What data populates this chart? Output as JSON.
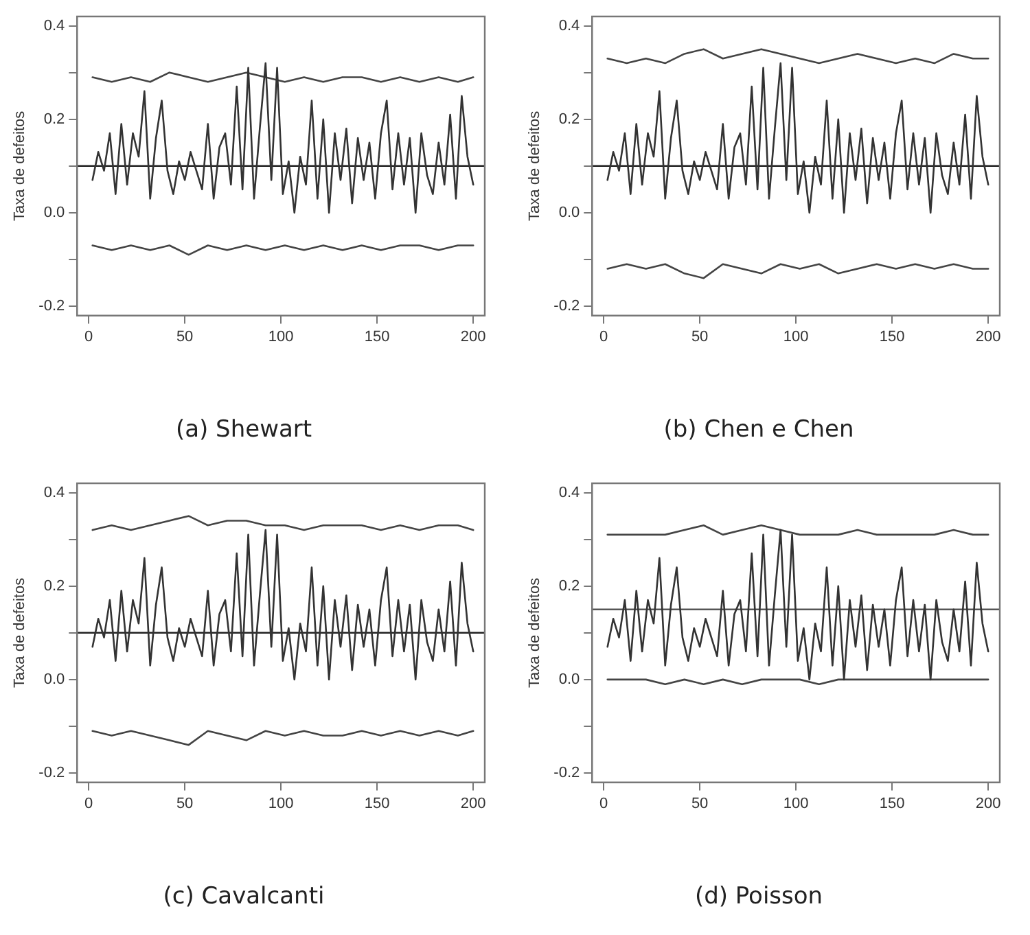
{
  "chart_data": [
    {
      "type": "line",
      "title": "(a) Shewart",
      "ylabel": "Taxa de defeitos",
      "marker": "none",
      "grid": false,
      "legend": false,
      "xlim": [
        -6,
        206
      ],
      "xticks": [
        0,
        50,
        100,
        150,
        200
      ],
      "ylim": [
        -0.22,
        0.42
      ],
      "yticks": [
        {
          "value": -0.2,
          "label": "-0.2"
        },
        {
          "value": -0.1,
          "label": null
        },
        {
          "value": 0,
          "label": "0.0"
        },
        {
          "value": 0.1,
          "label": null
        },
        {
          "value": 0.2,
          "label": "0.2"
        },
        {
          "value": 0.3,
          "label": null
        },
        {
          "value": 0.4,
          "label": "0.4"
        }
      ],
      "ref_lines": [
        {
          "axis": "y",
          "value": 0.1,
          "color": "#222222"
        }
      ],
      "series": [
        {
          "color": "#333333",
          "x": [
            2,
            5,
            8,
            11,
            14,
            17,
            20,
            23,
            26,
            29,
            32,
            35,
            38,
            41,
            44,
            47,
            50,
            53,
            56,
            59,
            62,
            65,
            68,
            71,
            74,
            77,
            80,
            83,
            86,
            89,
            92,
            95,
            98,
            101,
            104,
            107,
            110,
            113,
            116,
            119,
            122,
            125,
            128,
            131,
            134,
            137,
            140,
            143,
            146,
            149,
            152,
            155,
            158,
            161,
            164,
            167,
            170,
            173,
            176,
            179,
            182,
            185,
            188,
            191,
            194,
            197,
            200
          ],
          "values": [
            0.07,
            0.13,
            0.09,
            0.17,
            0.04,
            0.19,
            0.06,
            0.17,
            0.12,
            0.26,
            0.03,
            0.16,
            0.24,
            0.09,
            0.04,
            0.11,
            0.07,
            0.13,
            0.09,
            0.05,
            0.19,
            0.03,
            0.14,
            0.17,
            0.06,
            0.27,
            0.05,
            0.31,
            0.03,
            0.18,
            0.32,
            0.07,
            0.31,
            0.04,
            0.11,
            0.0,
            0.12,
            0.06,
            0.24,
            0.03,
            0.2,
            0.0,
            0.17,
            0.07,
            0.18,
            0.02,
            0.16,
            0.07,
            0.15,
            0.03,
            0.17,
            0.24,
            0.05,
            0.17,
            0.06,
            0.16,
            0.0,
            0.17,
            0.08,
            0.04,
            0.15,
            0.06,
            0.21,
            0.03,
            0.25,
            0.12,
            0.06
          ]
        },
        {
          "color": "#444444",
          "x": [
            2,
            12,
            22,
            32,
            42,
            52,
            62,
            72,
            82,
            92,
            102,
            112,
            122,
            132,
            142,
            152,
            162,
            172,
            182,
            192,
            200
          ],
          "values": [
            0.29,
            0.28,
            0.29,
            0.28,
            0.3,
            0.29,
            0.28,
            0.29,
            0.3,
            0.29,
            0.28,
            0.29,
            0.28,
            0.29,
            0.29,
            0.28,
            0.29,
            0.28,
            0.29,
            0.28,
            0.29
          ]
        },
        {
          "color": "#444444",
          "x": [
            2,
            12,
            22,
            32,
            42,
            52,
            62,
            72,
            82,
            92,
            102,
            112,
            122,
            132,
            142,
            152,
            162,
            172,
            182,
            192,
            200
          ],
          "values": [
            -0.07,
            -0.08,
            -0.07,
            -0.08,
            -0.07,
            -0.09,
            -0.07,
            -0.08,
            -0.07,
            -0.08,
            -0.07,
            -0.08,
            -0.07,
            -0.08,
            -0.07,
            -0.08,
            -0.07,
            -0.07,
            -0.08,
            -0.07,
            -0.07
          ]
        }
      ]
    },
    {
      "type": "line",
      "title": "(b) Chen e Chen",
      "ylabel": "Taxa de defeitos",
      "marker": "none",
      "grid": false,
      "legend": false,
      "xlim": [
        -6,
        206
      ],
      "xticks": [
        0,
        50,
        100,
        150,
        200
      ],
      "ylim": [
        -0.22,
        0.42
      ],
      "yticks": [
        {
          "value": -0.2,
          "label": "-0.2"
        },
        {
          "value": -0.1,
          "label": null
        },
        {
          "value": 0,
          "label": "0.0"
        },
        {
          "value": 0.1,
          "label": null
        },
        {
          "value": 0.2,
          "label": "0.2"
        },
        {
          "value": 0.3,
          "label": null
        },
        {
          "value": 0.4,
          "label": "0.4"
        }
      ],
      "ref_lines": [
        {
          "axis": "y",
          "value": 0.1,
          "color": "#222222"
        }
      ],
      "series": [
        {
          "color": "#333333",
          "x": [
            2,
            5,
            8,
            11,
            14,
            17,
            20,
            23,
            26,
            29,
            32,
            35,
            38,
            41,
            44,
            47,
            50,
            53,
            56,
            59,
            62,
            65,
            68,
            71,
            74,
            77,
            80,
            83,
            86,
            89,
            92,
            95,
            98,
            101,
            104,
            107,
            110,
            113,
            116,
            119,
            122,
            125,
            128,
            131,
            134,
            137,
            140,
            143,
            146,
            149,
            152,
            155,
            158,
            161,
            164,
            167,
            170,
            173,
            176,
            179,
            182,
            185,
            188,
            191,
            194,
            197,
            200
          ],
          "values": [
            0.07,
            0.13,
            0.09,
            0.17,
            0.04,
            0.19,
            0.06,
            0.17,
            0.12,
            0.26,
            0.03,
            0.16,
            0.24,
            0.09,
            0.04,
            0.11,
            0.07,
            0.13,
            0.09,
            0.05,
            0.19,
            0.03,
            0.14,
            0.17,
            0.06,
            0.27,
            0.05,
            0.31,
            0.03,
            0.18,
            0.32,
            0.07,
            0.31,
            0.04,
            0.11,
            0.0,
            0.12,
            0.06,
            0.24,
            0.03,
            0.2,
            0.0,
            0.17,
            0.07,
            0.18,
            0.02,
            0.16,
            0.07,
            0.15,
            0.03,
            0.17,
            0.24,
            0.05,
            0.17,
            0.06,
            0.16,
            0.0,
            0.17,
            0.08,
            0.04,
            0.15,
            0.06,
            0.21,
            0.03,
            0.25,
            0.12,
            0.06
          ]
        },
        {
          "color": "#444444",
          "x": [
            2,
            12,
            22,
            32,
            42,
            52,
            62,
            72,
            82,
            92,
            102,
            112,
            122,
            132,
            142,
            152,
            162,
            172,
            182,
            192,
            200
          ],
          "values": [
            0.33,
            0.32,
            0.33,
            0.32,
            0.34,
            0.35,
            0.33,
            0.34,
            0.35,
            0.34,
            0.33,
            0.32,
            0.33,
            0.34,
            0.33,
            0.32,
            0.33,
            0.32,
            0.34,
            0.33,
            0.33
          ]
        },
        {
          "color": "#444444",
          "x": [
            2,
            12,
            22,
            32,
            42,
            52,
            62,
            72,
            82,
            92,
            102,
            112,
            122,
            132,
            142,
            152,
            162,
            172,
            182,
            192,
            200
          ],
          "values": [
            -0.12,
            -0.11,
            -0.12,
            -0.11,
            -0.13,
            -0.14,
            -0.11,
            -0.12,
            -0.13,
            -0.11,
            -0.12,
            -0.11,
            -0.13,
            -0.12,
            -0.11,
            -0.12,
            -0.11,
            -0.12,
            -0.11,
            -0.12,
            -0.12
          ]
        }
      ]
    },
    {
      "type": "line",
      "title": "(c) Cavalcanti",
      "ylabel": "Taxa de defeitos",
      "marker": "none",
      "grid": false,
      "legend": false,
      "xlim": [
        -6,
        206
      ],
      "xticks": [
        0,
        50,
        100,
        150,
        200
      ],
      "ylim": [
        -0.22,
        0.42
      ],
      "yticks": [
        {
          "value": -0.2,
          "label": "-0.2"
        },
        {
          "value": -0.1,
          "label": null
        },
        {
          "value": 0,
          "label": "0.0"
        },
        {
          "value": 0.1,
          "label": null
        },
        {
          "value": 0.2,
          "label": "0.2"
        },
        {
          "value": 0.3,
          "label": null
        },
        {
          "value": 0.4,
          "label": "0.4"
        }
      ],
      "ref_lines": [
        {
          "axis": "y",
          "value": 0.1,
          "color": "#222222"
        }
      ],
      "series": [
        {
          "color": "#333333",
          "x": [
            2,
            5,
            8,
            11,
            14,
            17,
            20,
            23,
            26,
            29,
            32,
            35,
            38,
            41,
            44,
            47,
            50,
            53,
            56,
            59,
            62,
            65,
            68,
            71,
            74,
            77,
            80,
            83,
            86,
            89,
            92,
            95,
            98,
            101,
            104,
            107,
            110,
            113,
            116,
            119,
            122,
            125,
            128,
            131,
            134,
            137,
            140,
            143,
            146,
            149,
            152,
            155,
            158,
            161,
            164,
            167,
            170,
            173,
            176,
            179,
            182,
            185,
            188,
            191,
            194,
            197,
            200
          ],
          "values": [
            0.07,
            0.13,
            0.09,
            0.17,
            0.04,
            0.19,
            0.06,
            0.17,
            0.12,
            0.26,
            0.03,
            0.16,
            0.24,
            0.09,
            0.04,
            0.11,
            0.07,
            0.13,
            0.09,
            0.05,
            0.19,
            0.03,
            0.14,
            0.17,
            0.06,
            0.27,
            0.05,
            0.31,
            0.03,
            0.18,
            0.32,
            0.07,
            0.31,
            0.04,
            0.11,
            0.0,
            0.12,
            0.06,
            0.24,
            0.03,
            0.2,
            0.0,
            0.17,
            0.07,
            0.18,
            0.02,
            0.16,
            0.07,
            0.15,
            0.03,
            0.17,
            0.24,
            0.05,
            0.17,
            0.06,
            0.16,
            0.0,
            0.17,
            0.08,
            0.04,
            0.15,
            0.06,
            0.21,
            0.03,
            0.25,
            0.12,
            0.06
          ]
        },
        {
          "color": "#444444",
          "x": [
            2,
            12,
            22,
            32,
            42,
            52,
            62,
            72,
            82,
            92,
            102,
            112,
            122,
            132,
            142,
            152,
            162,
            172,
            182,
            192,
            200
          ],
          "values": [
            0.32,
            0.33,
            0.32,
            0.33,
            0.34,
            0.35,
            0.33,
            0.34,
            0.34,
            0.33,
            0.33,
            0.32,
            0.33,
            0.33,
            0.33,
            0.32,
            0.33,
            0.32,
            0.33,
            0.33,
            0.32
          ]
        },
        {
          "color": "#444444",
          "x": [
            2,
            12,
            22,
            32,
            42,
            52,
            62,
            72,
            82,
            92,
            102,
            112,
            122,
            132,
            142,
            152,
            162,
            172,
            182,
            192,
            200
          ],
          "values": [
            -0.11,
            -0.12,
            -0.11,
            -0.12,
            -0.13,
            -0.14,
            -0.11,
            -0.12,
            -0.13,
            -0.11,
            -0.12,
            -0.11,
            -0.12,
            -0.12,
            -0.11,
            -0.12,
            -0.11,
            -0.12,
            -0.11,
            -0.12,
            -0.11
          ]
        }
      ]
    },
    {
      "type": "line",
      "title": "(d) Poisson",
      "ylabel": "Taxa de defeitos",
      "marker": "none",
      "grid": false,
      "legend": false,
      "xlim": [
        -6,
        206
      ],
      "xticks": [
        0,
        50,
        100,
        150,
        200
      ],
      "ylim": [
        -0.22,
        0.42
      ],
      "yticks": [
        {
          "value": -0.2,
          "label": "-0.2"
        },
        {
          "value": -0.1,
          "label": null
        },
        {
          "value": 0,
          "label": "0.0"
        },
        {
          "value": 0.1,
          "label": null
        },
        {
          "value": 0.2,
          "label": "0.2"
        },
        {
          "value": 0.3,
          "label": null
        },
        {
          "value": 0.4,
          "label": "0.4"
        }
      ],
      "ref_lines": [
        {
          "axis": "y",
          "value": 0.15,
          "color": "#555555"
        }
      ],
      "series": [
        {
          "color": "#333333",
          "x": [
            2,
            5,
            8,
            11,
            14,
            17,
            20,
            23,
            26,
            29,
            32,
            35,
            38,
            41,
            44,
            47,
            50,
            53,
            56,
            59,
            62,
            65,
            68,
            71,
            74,
            77,
            80,
            83,
            86,
            89,
            92,
            95,
            98,
            101,
            104,
            107,
            110,
            113,
            116,
            119,
            122,
            125,
            128,
            131,
            134,
            137,
            140,
            143,
            146,
            149,
            152,
            155,
            158,
            161,
            164,
            167,
            170,
            173,
            176,
            179,
            182,
            185,
            188,
            191,
            194,
            197,
            200
          ],
          "values": [
            0.07,
            0.13,
            0.09,
            0.17,
            0.04,
            0.19,
            0.06,
            0.17,
            0.12,
            0.26,
            0.03,
            0.16,
            0.24,
            0.09,
            0.04,
            0.11,
            0.07,
            0.13,
            0.09,
            0.05,
            0.19,
            0.03,
            0.14,
            0.17,
            0.06,
            0.27,
            0.05,
            0.31,
            0.03,
            0.18,
            0.32,
            0.07,
            0.31,
            0.04,
            0.11,
            0.0,
            0.12,
            0.06,
            0.24,
            0.03,
            0.2,
            0.0,
            0.17,
            0.07,
            0.18,
            0.02,
            0.16,
            0.07,
            0.15,
            0.03,
            0.17,
            0.24,
            0.05,
            0.17,
            0.06,
            0.16,
            0.0,
            0.17,
            0.08,
            0.04,
            0.15,
            0.06,
            0.21,
            0.03,
            0.25,
            0.12,
            0.06
          ]
        },
        {
          "color": "#444444",
          "x": [
            2,
            12,
            22,
            32,
            42,
            52,
            62,
            72,
            82,
            92,
            102,
            112,
            122,
            132,
            142,
            152,
            162,
            172,
            182,
            192,
            200
          ],
          "values": [
            0.31,
            0.31,
            0.31,
            0.31,
            0.32,
            0.33,
            0.31,
            0.32,
            0.33,
            0.32,
            0.31,
            0.31,
            0.31,
            0.32,
            0.31,
            0.31,
            0.31,
            0.31,
            0.32,
            0.31,
            0.31
          ]
        },
        {
          "color": "#444444",
          "x": [
            2,
            12,
            22,
            32,
            42,
            52,
            62,
            72,
            82,
            92,
            102,
            112,
            122,
            132,
            142,
            152,
            162,
            172,
            182,
            192,
            200
          ],
          "values": [
            0.0,
            0.0,
            0.0,
            -0.01,
            0.0,
            -0.01,
            0.0,
            -0.01,
            0.0,
            0.0,
            0.0,
            -0.01,
            0.0,
            0.0,
            0.0,
            0.0,
            0.0,
            0.0,
            0.0,
            0.0,
            0.0
          ]
        }
      ]
    }
  ]
}
